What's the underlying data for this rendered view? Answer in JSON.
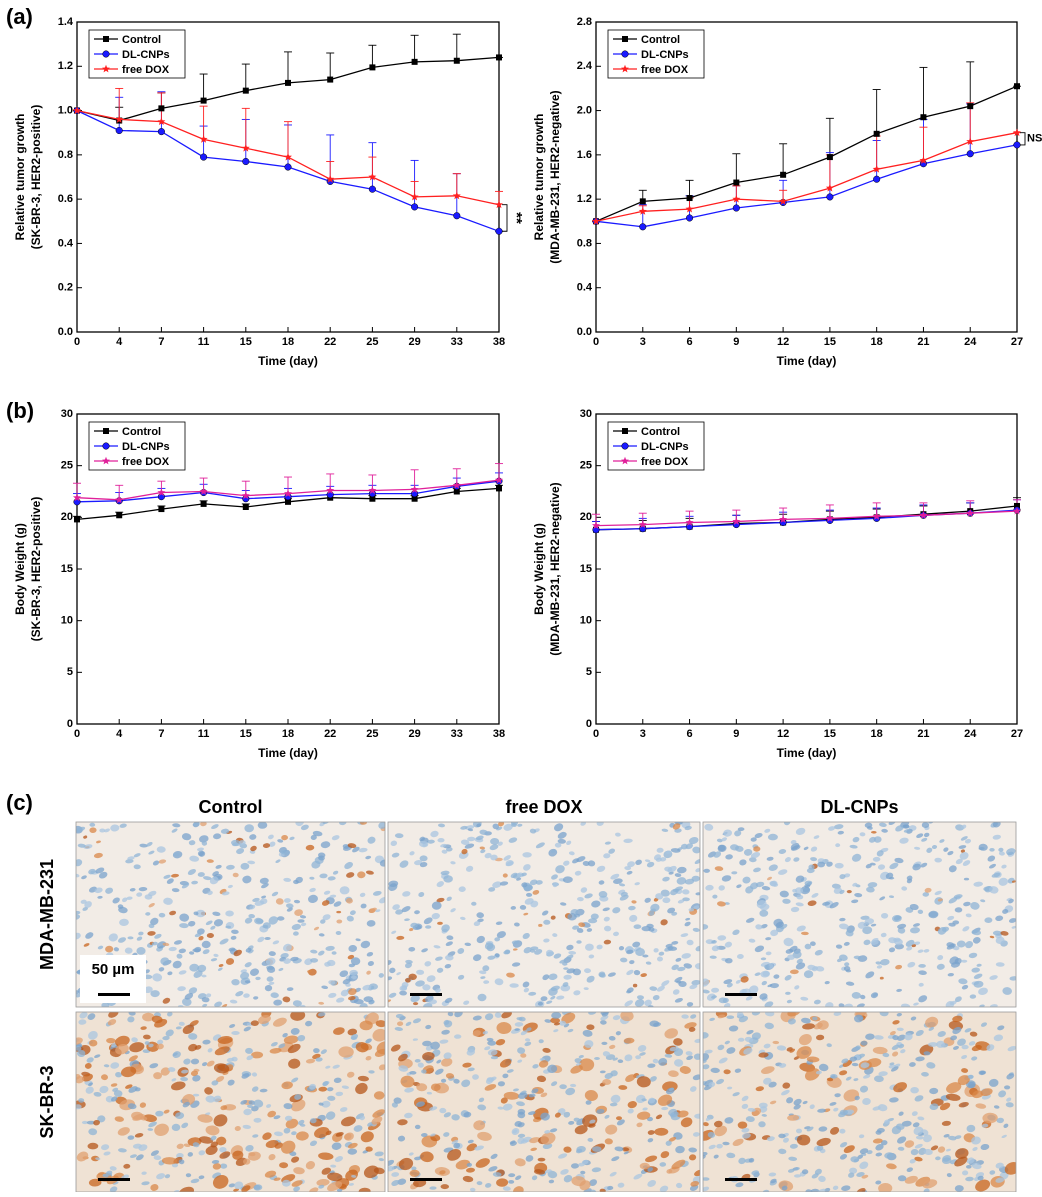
{
  "panel_labels": [
    "(a)",
    "(b)",
    "(c)"
  ],
  "chart_data": [
    {
      "type": "line",
      "legend": "upper left",
      "annotation": "**",
      "xlabel": "Time (day)",
      "ylabel": [
        "Relative tumor growth",
        "(SK-BR-3, HER2-positive)"
      ],
      "categories": [
        "0",
        "4",
        "7",
        "11",
        "15",
        "18",
        "22",
        "25",
        "29",
        "33",
        "38"
      ],
      "ylim": [
        0,
        1.4
      ],
      "yticks": [
        {
          "value": 0,
          "label": "0.0"
        },
        0.2,
        0.4,
        0.6,
        0.8,
        {
          "value": 1,
          "label": "1.0"
        },
        1.2,
        1.4
      ],
      "series": [
        {
          "name": "Control",
          "color": "#000000",
          "marker": "square",
          "values": [
            1.0,
            0.955,
            1.01,
            1.045,
            1.09,
            1.125,
            1.14,
            1.195,
            1.22,
            1.225,
            1.24
          ],
          "errors": [
            0,
            0.06,
            0.07,
            0.12,
            0.12,
            0.14,
            0.12,
            0.1,
            0.12,
            0.12,
            0
          ]
        },
        {
          "name": "DL-CNPs",
          "color": "#1a1aff",
          "marker": "circle",
          "values": [
            1.0,
            0.91,
            0.905,
            0.79,
            0.77,
            0.745,
            0.68,
            0.645,
            0.565,
            0.525,
            0.455
          ],
          "errors": [
            0,
            0.15,
            0.18,
            0.14,
            0.19,
            0.19,
            0.21,
            0.21,
            0.21,
            0.19,
            0
          ]
        },
        {
          "name": "free DOX",
          "color": "#ff2020",
          "marker": "star",
          "values": [
            1.0,
            0.96,
            0.95,
            0.87,
            0.83,
            0.79,
            0.69,
            0.7,
            0.61,
            0.615,
            0.575
          ],
          "errors": [
            0,
            0.14,
            0.13,
            0.15,
            0.18,
            0.16,
            0.08,
            0.09,
            0.07,
            0.1,
            0.06
          ]
        }
      ]
    },
    {
      "type": "line",
      "legend": "upper left",
      "annotation": "NS",
      "xlabel": "Time (day)",
      "ylabel": [
        "Relative tumor growth",
        "(MDA-MB-231, HER2-negative)"
      ],
      "categories": [
        "0",
        "3",
        "6",
        "9",
        "12",
        "15",
        "18",
        "21",
        "24",
        "27"
      ],
      "ylim": [
        0,
        2.8
      ],
      "yticks": [
        {
          "value": 0,
          "label": "0.0"
        },
        0.4,
        0.8,
        1.2,
        1.6,
        {
          "value": 2,
          "label": "2.0"
        },
        2.4,
        2.8
      ],
      "series": [
        {
          "name": "Control",
          "color": "#000000",
          "marker": "square",
          "values": [
            1.0,
            1.18,
            1.21,
            1.35,
            1.42,
            1.58,
            1.79,
            1.94,
            2.04,
            2.22
          ],
          "errors": [
            0,
            0.1,
            0.16,
            0.26,
            0.28,
            0.35,
            0.4,
            0.45,
            0.4,
            0
          ]
        },
        {
          "name": "DL-CNPs",
          "color": "#1a1aff",
          "marker": "circle",
          "values": [
            1.0,
            0.95,
            1.03,
            1.12,
            1.17,
            1.22,
            1.38,
            1.52,
            1.61,
            1.69
          ],
          "errors": [
            0,
            0.2,
            0.2,
            0.2,
            0.2,
            0.4,
            0.35,
            0.4,
            0.45,
            0
          ]
        },
        {
          "name": "free DOX",
          "color": "#ff2020",
          "marker": "star",
          "values": [
            1.0,
            1.09,
            1.11,
            1.2,
            1.18,
            1.3,
            1.47,
            1.55,
            1.72,
            1.8
          ],
          "errors": [
            0,
            0.05,
            0.1,
            0.12,
            0.1,
            0.3,
            0.3,
            0.3,
            0.35,
            0
          ]
        }
      ]
    },
    {
      "type": "line",
      "legend": "upper left",
      "xlabel": "Time (day)",
      "ylabel": [
        "Body Weight (g)",
        "(SK-BR-3, HER2-positive)"
      ],
      "categories": [
        "0",
        "4",
        "7",
        "11",
        "15",
        "18",
        "22",
        "25",
        "29",
        "33",
        "38"
      ],
      "ylim": [
        0,
        30
      ],
      "yticks": [
        0,
        5,
        10,
        15,
        20,
        25,
        30
      ],
      "series": [
        {
          "name": "Control",
          "color": "#000000",
          "marker": "square",
          "values": [
            19.8,
            20.2,
            20.8,
            21.3,
            21.0,
            21.5,
            21.9,
            21.8,
            21.8,
            22.5,
            22.8
          ],
          "errors": [
            0.3,
            0.3,
            0.3,
            0.3,
            0.3,
            0.3,
            0.3,
            0.3,
            0.3,
            0.3,
            0.3
          ]
        },
        {
          "name": "DL-CNPs",
          "color": "#1a1aff",
          "marker": "circle",
          "values": [
            21.5,
            21.6,
            22.0,
            22.4,
            21.8,
            22.0,
            22.2,
            22.3,
            22.3,
            23.0,
            23.5
          ],
          "errors": [
            0.8,
            0.8,
            0.8,
            0.8,
            0.8,
            0.8,
            0.8,
            0.8,
            0.8,
            0.8,
            0.8
          ]
        },
        {
          "name": "free DOX",
          "color": "#e0209a",
          "marker": "star",
          "values": [
            21.9,
            21.7,
            22.4,
            22.5,
            22.1,
            22.3,
            22.6,
            22.6,
            22.7,
            23.1,
            23.6
          ],
          "errors": [
            1.4,
            1.4,
            1.1,
            1.3,
            1.4,
            1.6,
            1.6,
            1.5,
            1.9,
            1.6,
            1.6
          ]
        }
      ]
    },
    {
      "type": "line",
      "legend": "upper left",
      "xlabel": "Time (day)",
      "ylabel": [
        "Body Weight (g)",
        "(MDA-MB-231, HER2-negative)"
      ],
      "categories": [
        "0",
        "3",
        "6",
        "9",
        "12",
        "15",
        "18",
        "21",
        "24",
        "27"
      ],
      "ylim": [
        0,
        30
      ],
      "yticks": [
        0,
        5,
        10,
        15,
        20,
        25,
        30
      ],
      "series": [
        {
          "name": "Control",
          "color": "#000000",
          "marker": "square",
          "values": [
            18.8,
            18.9,
            19.1,
            19.4,
            19.5,
            19.8,
            20.0,
            20.3,
            20.6,
            21.1
          ],
          "errors": [
            0.8,
            0.8,
            0.8,
            0.8,
            0.8,
            0.8,
            0.8,
            0.8,
            0.8,
            0.8
          ]
        },
        {
          "name": "DL-CNPs",
          "color": "#1a1aff",
          "marker": "circle",
          "values": [
            18.8,
            18.9,
            19.1,
            19.3,
            19.5,
            19.7,
            19.9,
            20.2,
            20.4,
            20.7
          ],
          "errors": [
            0.8,
            1.0,
            1.0,
            0.9,
            1.0,
            1.0,
            1.0,
            1.0,
            1.0,
            1.0
          ]
        },
        {
          "name": "free DOX",
          "color": "#e0209a",
          "marker": "star",
          "values": [
            19.2,
            19.3,
            19.5,
            19.6,
            19.8,
            19.9,
            20.1,
            20.2,
            20.4,
            20.6
          ],
          "errors": [
            1.1,
            1.1,
            1.1,
            1.1,
            1.1,
            1.3,
            1.3,
            1.2,
            1.2,
            1.1
          ]
        }
      ]
    }
  ],
  "micrographs": {
    "columns": [
      "Control",
      "free DOX",
      "DL-CNPs"
    ],
    "rows": [
      "MDA-MB-231",
      "SK-BR-3"
    ],
    "scale_bar": "50 µm"
  }
}
